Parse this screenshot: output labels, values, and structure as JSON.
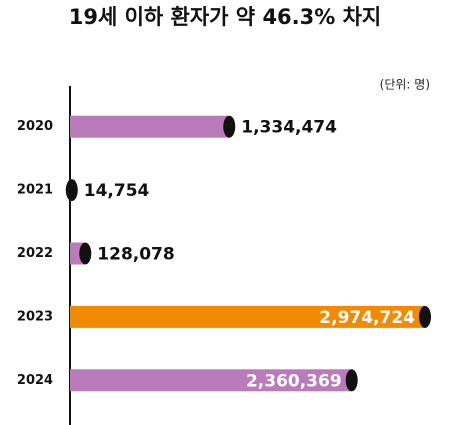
{
  "chart_data": {
    "type": "bar",
    "orientation": "horizontal",
    "title": "19세 이하 환자가 약 46.3% 차지",
    "unit_label": "(단위: 명)",
    "categories": [
      "2020",
      "2021",
      "2022",
      "2023",
      "2024"
    ],
    "values": [
      1334474,
      14754,
      128078,
      2974724,
      2360369
    ],
    "value_labels": [
      "1,334,474",
      "14,754",
      "128,078",
      "2,974,724",
      "2,360,369"
    ],
    "colors": [
      "#b97bb9",
      "#b97bb9",
      "#b97bb9",
      "#f28a00",
      "#b97bb9"
    ]
  }
}
